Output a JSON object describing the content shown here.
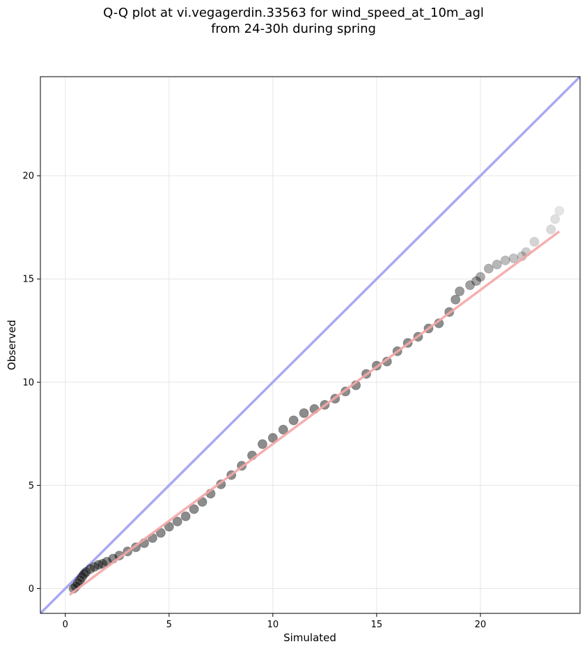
{
  "chart_data": {
    "type": "scatter",
    "title": "Q-Q plot at vi.vegagerdin.33563 for wind_speed_at_10m_agl",
    "subtitle": "from 24-30h during spring",
    "xlabel": "Simulated",
    "ylabel": "Observed",
    "xlim": [
      -1.2,
      24.8
    ],
    "ylim": [
      -1.2,
      24.8
    ],
    "xticks": [
      0,
      5,
      10,
      15,
      20
    ],
    "yticks": [
      0,
      5,
      10,
      15,
      20
    ],
    "grid": true,
    "series": [
      {
        "role": "quantiles",
        "color": "#000000",
        "points": [
          [
            0.4,
            0.0
          ],
          [
            0.5,
            0.1
          ],
          [
            0.6,
            0.25
          ],
          [
            0.7,
            0.4
          ],
          [
            0.8,
            0.55
          ],
          [
            0.9,
            0.7
          ],
          [
            1.0,
            0.8
          ],
          [
            1.2,
            0.95
          ],
          [
            1.4,
            1.05
          ],
          [
            1.6,
            1.15
          ],
          [
            1.8,
            1.2
          ],
          [
            2.0,
            1.3
          ],
          [
            2.3,
            1.45
          ],
          [
            2.6,
            1.6
          ],
          [
            3.0,
            1.8
          ],
          [
            3.4,
            2.0
          ],
          [
            3.8,
            2.2
          ],
          [
            4.2,
            2.45
          ],
          [
            4.6,
            2.7
          ],
          [
            5.0,
            3.0
          ],
          [
            5.4,
            3.25
          ],
          [
            5.8,
            3.5
          ],
          [
            6.2,
            3.85
          ],
          [
            6.6,
            4.2
          ],
          [
            7.0,
            4.6
          ],
          [
            7.5,
            5.05
          ],
          [
            8.0,
            5.5
          ],
          [
            8.5,
            5.95
          ],
          [
            9.0,
            6.45
          ],
          [
            9.5,
            7.0
          ],
          [
            10.0,
            7.3
          ],
          [
            10.5,
            7.7
          ],
          [
            11.0,
            8.15
          ],
          [
            11.5,
            8.5
          ],
          [
            12.0,
            8.7
          ],
          [
            12.5,
            8.9
          ],
          [
            13.0,
            9.2
          ],
          [
            13.5,
            9.55
          ],
          [
            14.0,
            9.85
          ],
          [
            14.5,
            10.4
          ],
          [
            15.0,
            10.8
          ],
          [
            15.5,
            11.0
          ],
          [
            16.0,
            11.5
          ],
          [
            16.5,
            11.9
          ],
          [
            17.0,
            12.2
          ],
          [
            17.5,
            12.6
          ],
          [
            18.0,
            12.85
          ],
          [
            18.5,
            13.4
          ],
          [
            18.8,
            14.0
          ],
          [
            19.0,
            14.4
          ],
          [
            19.5,
            14.7
          ],
          [
            19.8,
            14.9
          ],
          [
            20.0,
            15.1
          ],
          [
            20.4,
            15.5
          ],
          [
            20.8,
            15.7
          ],
          [
            21.2,
            15.9
          ],
          [
            21.6,
            16.0
          ],
          [
            22.0,
            16.1
          ],
          [
            22.2,
            16.3
          ],
          [
            22.6,
            16.8
          ],
          [
            23.4,
            17.4
          ],
          [
            23.6,
            17.9
          ],
          [
            23.8,
            18.3
          ]
        ]
      },
      {
        "role": "fit-line",
        "color": "#f4a6a6",
        "points": [
          [
            0.2,
            -0.3
          ],
          [
            23.8,
            17.3
          ]
        ]
      },
      {
        "role": "identity-line",
        "color": "#a8a9f2",
        "points": [
          [
            -1.2,
            -1.2
          ],
          [
            24.8,
            24.8
          ]
        ]
      }
    ]
  }
}
